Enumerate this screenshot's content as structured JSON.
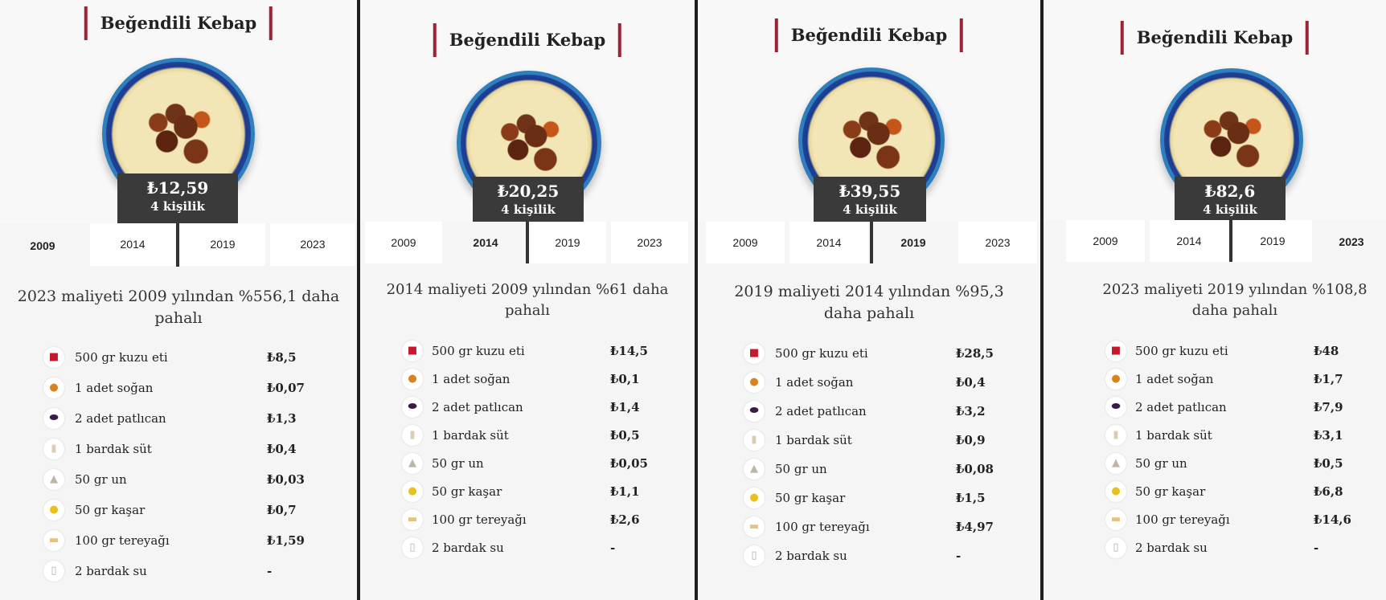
{
  "panels": [
    {
      "title": "Beğendili Kebap",
      "price": "₺12,59",
      "servings": "4 kişilik",
      "tabs": [
        "2009",
        "2014",
        "2019",
        "2023"
      ],
      "summary": "2023 maliyeti 2009 yılından %556,1 daha pahalı",
      "items": [
        {
          "icon": "meat-icon",
          "name": "500 gr kuzu eti",
          "cost": "₺8,5"
        },
        {
          "icon": "onion-icon",
          "name": "1 adet soğan",
          "cost": "₺0,07"
        },
        {
          "icon": "eggplant-icon",
          "name": "2 adet patlıcan",
          "cost": "₺1,3"
        },
        {
          "icon": "milk-icon",
          "name": "1 bardak süt",
          "cost": "₺0,4"
        },
        {
          "icon": "flour-icon",
          "name": "50 gr un",
          "cost": "₺0,03"
        },
        {
          "icon": "cheese-icon",
          "name": "50 gr kaşar",
          "cost": "₺0,7"
        },
        {
          "icon": "butter-icon",
          "name": "100 gr tereyağı",
          "cost": "₺1,59"
        },
        {
          "icon": "water-icon",
          "name": "2 bardak su",
          "cost": "-"
        }
      ]
    },
    {
      "title": "Beğendili Kebap",
      "price": "₺20,25",
      "servings": "4 kişilik",
      "tabs": [
        "2009",
        "2014",
        "2019",
        "2023"
      ],
      "summary": "2014 maliyeti 2009 yılından %61 daha pahalı",
      "items": [
        {
          "icon": "meat-icon",
          "name": "500 gr kuzu eti",
          "cost": "₺14,5"
        },
        {
          "icon": "onion-icon",
          "name": "1 adet soğan",
          "cost": "₺0,1"
        },
        {
          "icon": "eggplant-icon",
          "name": "2 adet patlıcan",
          "cost": "₺1,4"
        },
        {
          "icon": "milk-icon",
          "name": "1 bardak süt",
          "cost": "₺0,5"
        },
        {
          "icon": "flour-icon",
          "name": "50 gr un",
          "cost": "₺0,05"
        },
        {
          "icon": "cheese-icon",
          "name": "50 gr kaşar",
          "cost": "₺1,1"
        },
        {
          "icon": "butter-icon",
          "name": "100 gr tereyağı",
          "cost": "₺2,6"
        },
        {
          "icon": "water-icon",
          "name": "2 bardak su",
          "cost": "-"
        }
      ]
    },
    {
      "title": "Beğendili Kebap",
      "price": "₺39,55",
      "servings": "4 kişilik",
      "tabs": [
        "2009",
        "2014",
        "2019",
        "2023"
      ],
      "summary": "2019 maliyeti 2014 yılından %95,3 daha pahalı",
      "items": [
        {
          "icon": "meat-icon",
          "name": "500 gr kuzu eti",
          "cost": "₺28,5"
        },
        {
          "icon": "onion-icon",
          "name": "1 adet soğan",
          "cost": "₺0,4"
        },
        {
          "icon": "eggplant-icon",
          "name": "2 adet patlıcan",
          "cost": "₺3,2"
        },
        {
          "icon": "milk-icon",
          "name": "1 bardak süt",
          "cost": "₺0,9"
        },
        {
          "icon": "flour-icon",
          "name": "50 gr un",
          "cost": "₺0,08"
        },
        {
          "icon": "cheese-icon",
          "name": "50 gr kaşar",
          "cost": "₺1,5"
        },
        {
          "icon": "butter-icon",
          "name": "100 gr tereyağı",
          "cost": "₺4,97"
        },
        {
          "icon": "water-icon",
          "name": "2 bardak su",
          "cost": "-"
        }
      ]
    },
    {
      "title": "Beğendili Kebap",
      "price": "₺82,6",
      "servings": "4 kişilik",
      "tabs": [
        "2009",
        "2014",
        "2019",
        "2023"
      ],
      "summary": "2023 maliyeti 2019 yılından %108,8 daha pahalı",
      "items": [
        {
          "icon": "meat-icon",
          "name": "500 gr kuzu eti",
          "cost": "₺48"
        },
        {
          "icon": "onion-icon",
          "name": "1 adet soğan",
          "cost": "₺1,7"
        },
        {
          "icon": "eggplant-icon",
          "name": "2 adet patlıcan",
          "cost": "₺7,9"
        },
        {
          "icon": "milk-icon",
          "name": "1 bardak süt",
          "cost": "₺3,1"
        },
        {
          "icon": "flour-icon",
          "name": "50 gr un",
          "cost": "₺0,5"
        },
        {
          "icon": "cheese-icon",
          "name": "50 gr kaşar",
          "cost": "₺6,8"
        },
        {
          "icon": "butter-icon",
          "name": "100 gr tereyağı",
          "cost": "₺14,6"
        },
        {
          "icon": "water-icon",
          "name": "2 bardak su",
          "cost": "-"
        }
      ]
    }
  ]
}
